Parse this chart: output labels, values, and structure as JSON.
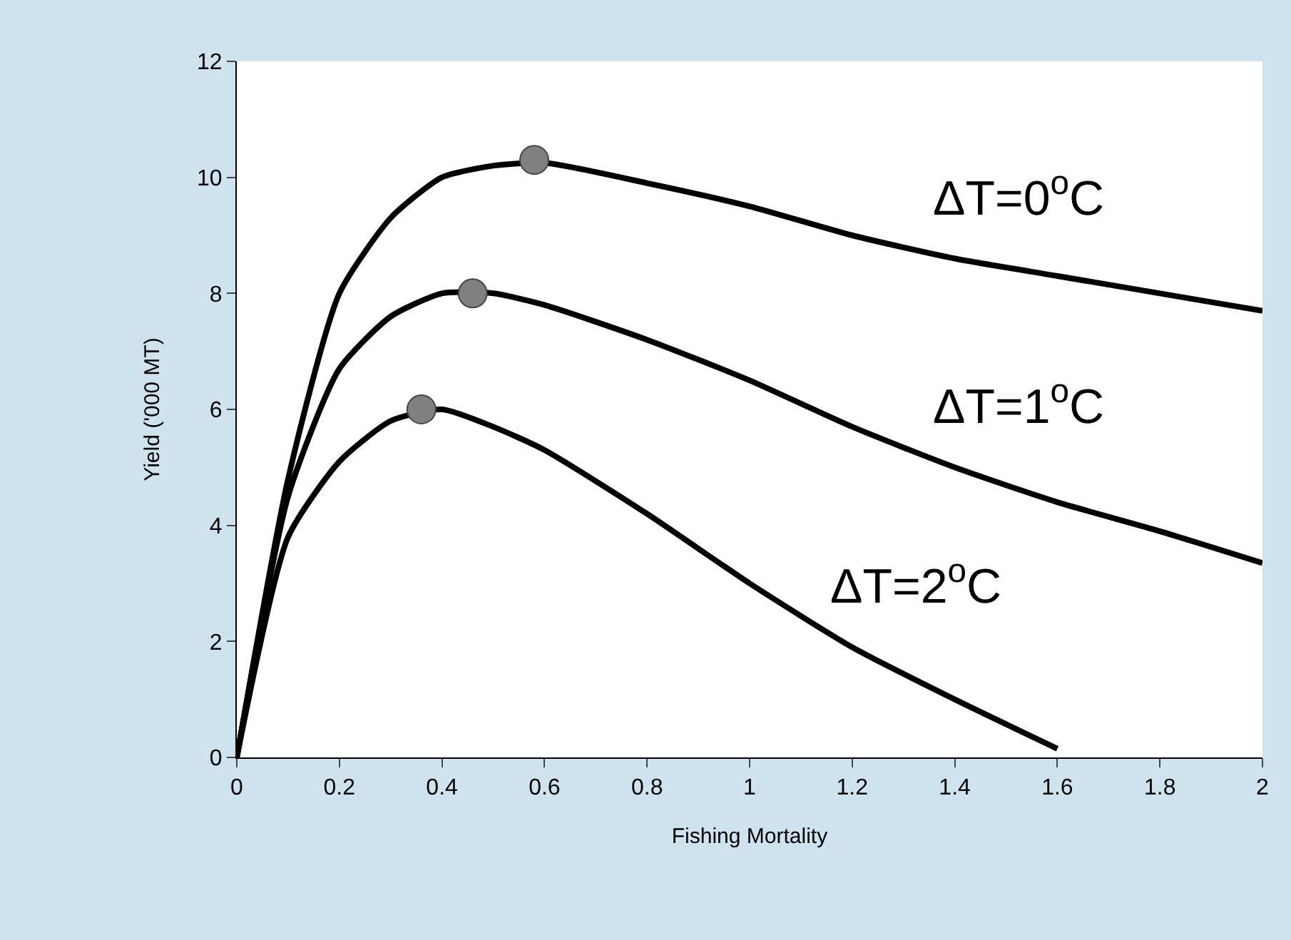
{
  "chart_data": {
    "type": "line",
    "xlabel": "Fishing Mortality",
    "ylabel": "Yield ('000 MT)",
    "xlim": [
      0,
      2
    ],
    "xticks": [
      0,
      0.2,
      0.4,
      0.6,
      0.8,
      1,
      1.2,
      1.4,
      1.6,
      1.8,
      2
    ],
    "ylim": [
      0,
      12
    ],
    "yticks": [
      0,
      2,
      4,
      6,
      8,
      10,
      12
    ],
    "grid": false,
    "legend": false,
    "marker": "none",
    "line_style": "solid",
    "series": [
      {
        "name": "ΔT=0$^{o}$C",
        "color": "#000000",
        "x": [
          0,
          0.1,
          0.2,
          0.3,
          0.4,
          0.5,
          0.6,
          0.8,
          1,
          1.2,
          1.4,
          1.6,
          1.8,
          2
        ],
        "values": [
          0,
          4.8,
          8,
          9.3,
          10,
          10.2,
          10.25,
          9.9,
          9.5,
          9,
          8.6,
          8.3,
          8,
          7.7
        ]
      },
      {
        "name": "ΔT=1$^{o}$C",
        "color": "#000000",
        "x": [
          0,
          0.1,
          0.2,
          0.3,
          0.4,
          0.5,
          0.6,
          0.8,
          1,
          1.2,
          1.4,
          1.6,
          1.8,
          2
        ],
        "values": [
          0,
          4.5,
          6.7,
          7.6,
          8,
          8,
          7.8,
          7.2,
          6.5,
          5.7,
          5,
          4.4,
          3.9,
          3.35
        ]
      },
      {
        "name": "ΔT=2$^{o}$C",
        "color": "#000000",
        "x": [
          0,
          0.1,
          0.2,
          0.3,
          0.4,
          0.5,
          0.6,
          0.8,
          1,
          1.2,
          1.4,
          1.6
        ],
        "values": [
          0,
          3.8,
          5.1,
          5.8,
          6,
          5.7,
          5.3,
          4.2,
          3,
          1.9,
          1,
          0.15
        ]
      },
      {
        "type": "scatter",
        "marker": "circle",
        "color": "#808080",
        "x": [
          0.58,
          0.46,
          0.36
        ],
        "values": [
          10.3,
          8,
          6
        ]
      }
    ]
  }
}
